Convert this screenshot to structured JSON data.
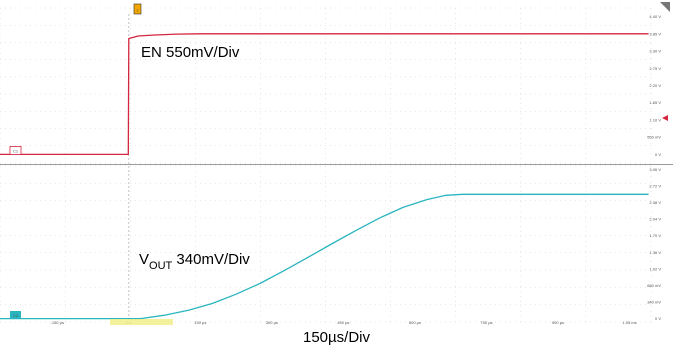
{
  "chart_data": [
    {
      "type": "line",
      "channel": "C1",
      "annotation": "EN 550mV/Div",
      "color": "#d4263f",
      "ylim": [
        -0.275,
        4.675
      ],
      "yticks": [
        "4.40 V",
        "3.85 V",
        "3.30 V",
        "2.75 V",
        "2.20 V",
        "1.65 V",
        "1.10 V",
        "550 mV",
        "0 V"
      ],
      "ytick_values": [
        4.4,
        3.85,
        3.3,
        2.75,
        2.2,
        1.65,
        1.1,
        0.55,
        0
      ],
      "series": [
        {
          "x": [
            -270,
            -1,
            0,
            20,
            50,
            100,
            150,
            800,
            1090
          ],
          "y": [
            0,
            0,
            3.7,
            3.78,
            3.81,
            3.84,
            3.85,
            3.85,
            3.85
          ]
        }
      ]
    },
    {
      "type": "line",
      "channel": "C2",
      "annotation_main": "V",
      "annotation_sub": "OUT",
      "annotation_rest": " 340mV/Div",
      "color": "#29b5bf",
      "ylim": [
        -0.07,
        3.13
      ],
      "yticks": [
        "3.06 V",
        "2.72 V",
        "2.38 V",
        "2.04 V",
        "1.70 V",
        "1.36 V",
        "1.02 V",
        "680 mV",
        "340 mV",
        "0 V"
      ],
      "ytick_values": [
        3.06,
        2.72,
        2.38,
        2.04,
        1.7,
        1.36,
        1.02,
        0.68,
        0.34,
        0
      ],
      "series": [
        {
          "x": [
            -270,
            0,
            25,
            75,
            125,
            175,
            225,
            275,
            325,
            375,
            425,
            475,
            525,
            575,
            625,
            665,
            700,
            750,
            800,
            1090
          ],
          "y": [
            0,
            0,
            0,
            0.07,
            0.17,
            0.31,
            0.5,
            0.72,
            0.98,
            1.25,
            1.53,
            1.8,
            2.06,
            2.28,
            2.44,
            2.53,
            2.55,
            2.55,
            2.55,
            2.55
          ]
        }
      ]
    }
  ],
  "time_axis": {
    "xlim": [
      -270,
      1095
    ],
    "ticks": [
      "-150 µs",
      "0 s",
      "150 µs",
      "300 µs",
      "450 µs",
      "600 µs",
      "750 µs",
      "900 µs",
      "1.05 ms"
    ],
    "tick_values": [
      -150,
      0,
      150,
      300,
      450,
      600,
      750,
      900,
      1050
    ],
    "xlabel": "150µs/Div"
  },
  "markers": {
    "trigger": "T",
    "ch1": "C1",
    "ch2": "C2"
  }
}
